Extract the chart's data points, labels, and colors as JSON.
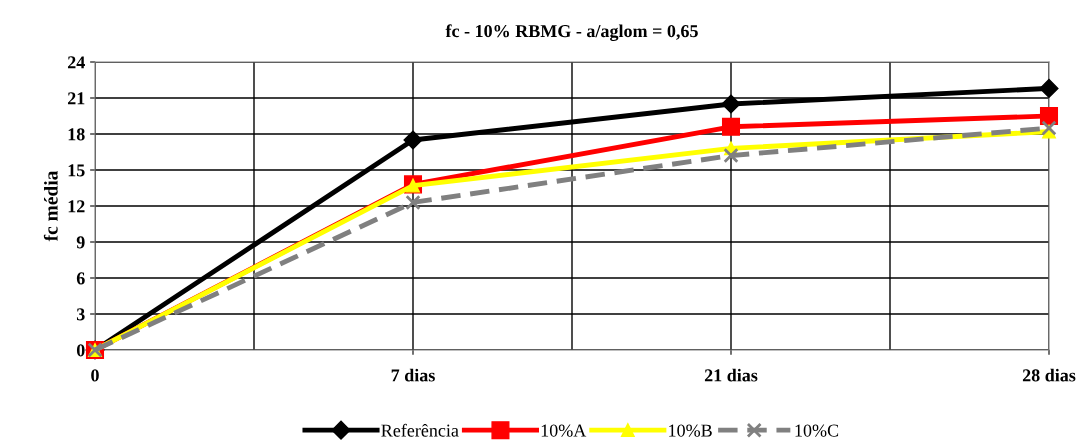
{
  "chart_data": {
    "type": "line",
    "title": "fc - 10% RBMG - a/aglom = 0,65",
    "ylabel": "fc média",
    "categories": [
      "0",
      "7 dias",
      "21 dias",
      "28 dias"
    ],
    "series": [
      {
        "name": "Referência",
        "color": "#000000",
        "values": [
          0,
          17.5,
          20.5,
          21.8
        ],
        "marker": "diamond",
        "line_style": "solid"
      },
      {
        "name": "10%A",
        "color": "#ff0000",
        "values": [
          0,
          13.8,
          18.6,
          19.5
        ],
        "marker": "square",
        "line_style": "solid"
      },
      {
        "name": "10%B",
        "color": "#ffff00",
        "values": [
          0,
          13.7,
          16.8,
          18.2
        ],
        "marker": "triangle",
        "line_style": "solid"
      },
      {
        "name": "10%C",
        "color": "#808080",
        "values": [
          0,
          12.3,
          16.2,
          18.5
        ],
        "marker": "cross",
        "line_style": "dashed"
      }
    ],
    "ylim": [
      0,
      24
    ],
    "yticks": [
      0,
      3,
      6,
      9,
      12,
      15,
      18,
      21,
      24
    ],
    "grid": true,
    "legend": "bottom"
  }
}
